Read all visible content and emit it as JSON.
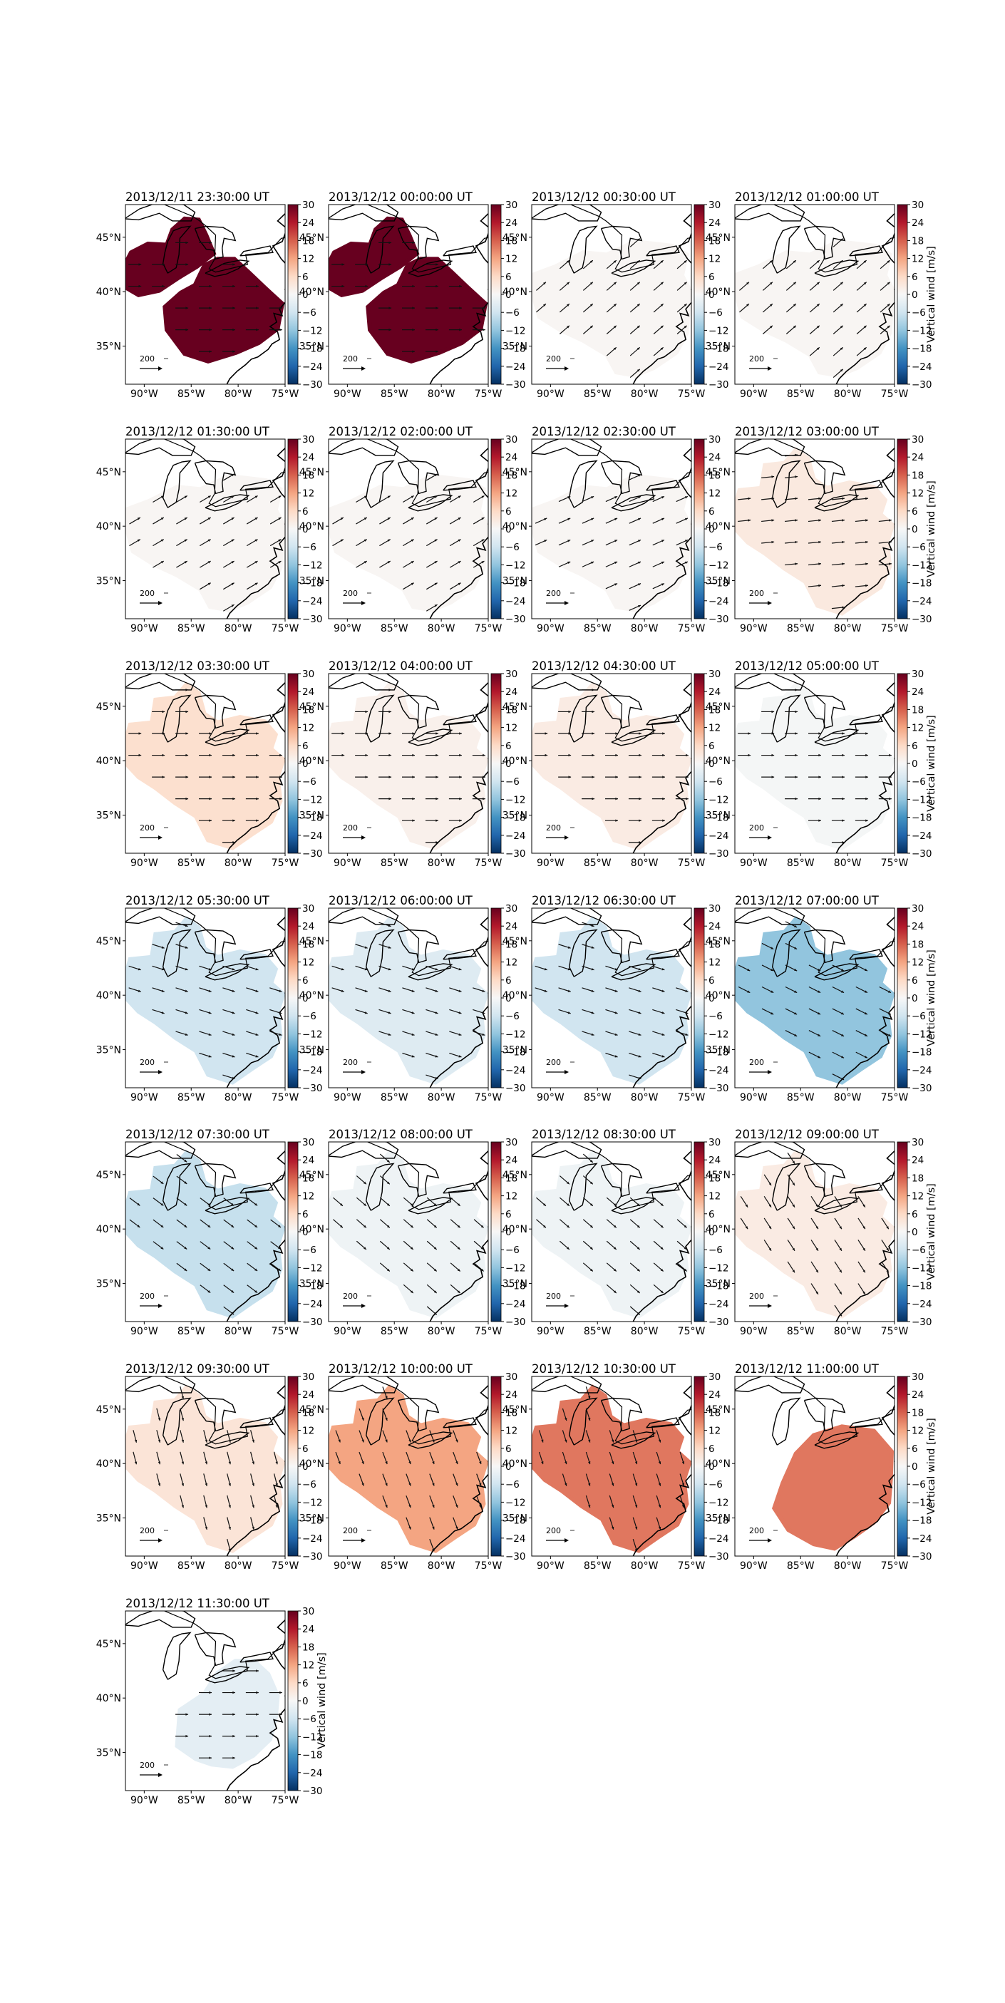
{
  "chart_data": {
    "type": "heatmap",
    "colorbar": {
      "label": "Vertical wind [m/s]",
      "ticks": [
        "30",
        "24",
        "18",
        "12",
        "6",
        "0",
        "−6",
        "−12",
        "−18",
        "−24",
        "−30"
      ],
      "min": -30,
      "max": 30,
      "colormap": [
        "#67001f",
        "#b2182b",
        "#d6604d",
        "#f4a582",
        "#fddbc7",
        "#f7f7f7",
        "#d1e5f0",
        "#92c5de",
        "#4393c3",
        "#2166ac",
        "#053061"
      ]
    },
    "lat_ticks": [
      "45°N",
      "40°N",
      "35°N"
    ],
    "lon_ticks": [
      "90°W",
      "85°W",
      "80°W",
      "75°W"
    ],
    "vector_key_label": "200",
    "panels": [
      {
        "time": "2013/12/11 23:30:00 UT",
        "value": 30,
        "region": "two",
        "arrow": {
          "dx": 1,
          "dy": 0
        },
        "show_cbar_label": false
      },
      {
        "time": "2013/12/12 00:00:00 UT",
        "value": 30,
        "region": "two",
        "arrow": {
          "dx": 1,
          "dy": 0
        },
        "show_cbar_label": false
      },
      {
        "time": "2013/12/12 00:30:00 UT",
        "value": 0.5,
        "region": "full",
        "arrow": {
          "dx": 0.75,
          "dy": -0.65
        },
        "show_cbar_label": false
      },
      {
        "time": "2013/12/12 01:00:00 UT",
        "value": 0.5,
        "region": "full",
        "arrow": {
          "dx": 0.75,
          "dy": -0.65
        },
        "show_cbar_label": true
      },
      {
        "time": "2013/12/12 01:30:00 UT",
        "value": 0.5,
        "region": "full",
        "arrow": {
          "dx": 0.85,
          "dy": -0.5
        },
        "show_cbar_label": false
      },
      {
        "time": "2013/12/12 02:00:00 UT",
        "value": 0.5,
        "region": "full",
        "arrow": {
          "dx": 0.85,
          "dy": -0.5
        },
        "show_cbar_label": false
      },
      {
        "time": "2013/12/12 02:30:00 UT",
        "value": 0.5,
        "region": "full",
        "arrow": {
          "dx": 0.9,
          "dy": -0.4
        },
        "show_cbar_label": false
      },
      {
        "time": "2013/12/12 03:00:00 UT",
        "value": 3,
        "region": "main",
        "arrow": {
          "dx": 1,
          "dy": -0.1
        },
        "show_cbar_label": true
      },
      {
        "time": "2013/12/12 03:30:00 UT",
        "value": 5,
        "region": "main",
        "arrow": {
          "dx": 1,
          "dy": 0
        },
        "show_cbar_label": false
      },
      {
        "time": "2013/12/12 04:00:00 UT",
        "value": 1.5,
        "region": "main",
        "arrow": {
          "dx": 1,
          "dy": 0
        },
        "show_cbar_label": false
      },
      {
        "time": "2013/12/12 04:30:00 UT",
        "value": 2.5,
        "region": "main",
        "arrow": {
          "dx": 1,
          "dy": 0
        },
        "show_cbar_label": false
      },
      {
        "time": "2013/12/12 05:00:00 UT",
        "value": -0.5,
        "region": "main",
        "arrow": {
          "dx": 1,
          "dy": 0
        },
        "show_cbar_label": true
      },
      {
        "time": "2013/12/12 05:30:00 UT",
        "value": -6,
        "region": "main",
        "arrow": {
          "dx": 0.95,
          "dy": 0.3
        },
        "show_cbar_label": false
      },
      {
        "time": "2013/12/12 06:00:00 UT",
        "value": -4,
        "region": "main",
        "arrow": {
          "dx": 0.95,
          "dy": 0.3
        },
        "show_cbar_label": false
      },
      {
        "time": "2013/12/12 06:30:00 UT",
        "value": -6,
        "region": "main",
        "arrow": {
          "dx": 0.95,
          "dy": 0.3
        },
        "show_cbar_label": false
      },
      {
        "time": "2013/12/12 07:00:00 UT",
        "value": -12,
        "region": "main",
        "arrow": {
          "dx": 0.9,
          "dy": 0.45
        },
        "show_cbar_label": true
      },
      {
        "time": "2013/12/12 07:30:00 UT",
        "value": -7,
        "region": "main",
        "arrow": {
          "dx": 0.8,
          "dy": 0.6
        },
        "show_cbar_label": false
      },
      {
        "time": "2013/12/12 08:00:00 UT",
        "value": -1.5,
        "region": "main",
        "arrow": {
          "dx": 0.75,
          "dy": 0.65
        },
        "show_cbar_label": false
      },
      {
        "time": "2013/12/12 08:30:00 UT",
        "value": -1.5,
        "region": "main",
        "arrow": {
          "dx": 0.75,
          "dy": 0.65
        },
        "show_cbar_label": false
      },
      {
        "time": "2013/12/12 09:00:00 UT",
        "value": 2.5,
        "region": "main",
        "arrow": {
          "dx": 0.55,
          "dy": 0.85
        },
        "show_cbar_label": true
      },
      {
        "time": "2013/12/12 09:30:00 UT",
        "value": 4,
        "region": "main",
        "arrow": {
          "dx": 0.25,
          "dy": 0.97
        },
        "show_cbar_label": false
      },
      {
        "time": "2013/12/12 10:00:00 UT",
        "value": 12,
        "region": "main",
        "arrow": {
          "dx": 0.35,
          "dy": 0.94
        },
        "show_cbar_label": false
      },
      {
        "time": "2013/12/12 10:30:00 UT",
        "value": 16,
        "region": "main",
        "arrow": {
          "dx": 0.3,
          "dy": 0.95
        },
        "show_cbar_label": false
      },
      {
        "time": "2013/12/12 11:00:00 UT",
        "value": 16,
        "region": "southeast",
        "arrow": {
          "dx": 0,
          "dy": 0
        },
        "show_cbar_label": true
      },
      {
        "time": "2013/12/12 11:30:00 UT",
        "value": -3,
        "region": "south",
        "arrow": {
          "dx": 1,
          "dy": 0
        },
        "show_cbar_label": true
      }
    ]
  }
}
